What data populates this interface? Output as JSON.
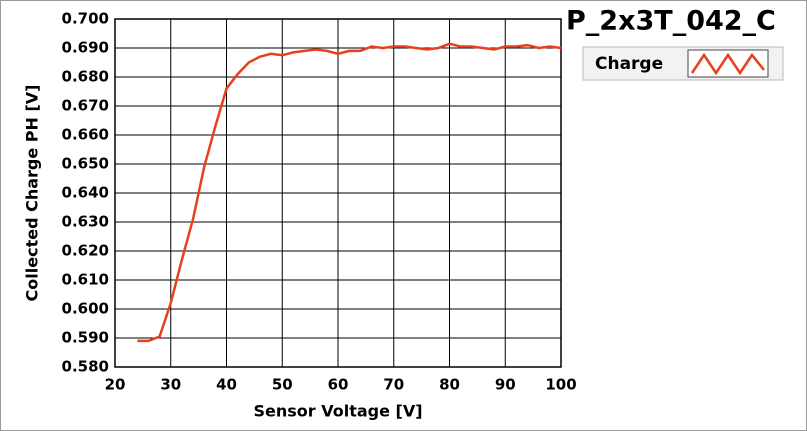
{
  "chart_data": {
    "type": "line",
    "title": "P_2x3T_042_C",
    "x_label": "Sensor Voltage [V]",
    "y_label": "Collected Charge PH [V]",
    "x": [
      24,
      26,
      28,
      30,
      32,
      34,
      36,
      38,
      40,
      42,
      44,
      46,
      48,
      50,
      52,
      54,
      56,
      58,
      60,
      62,
      64,
      66,
      68,
      70,
      72,
      74,
      76,
      78,
      80,
      82,
      84,
      86,
      88,
      90,
      92,
      94,
      96,
      98,
      100
    ],
    "series": [
      {
        "name": "Charge",
        "color": "#e8401c",
        "values": [
          0.589,
          0.589,
          0.5905,
          0.602,
          0.617,
          0.631,
          0.649,
          0.663,
          0.676,
          0.681,
          0.685,
          0.687,
          0.688,
          0.6875,
          0.6885,
          0.689,
          0.6895,
          0.689,
          0.688,
          0.689,
          0.689,
          0.6905,
          0.69,
          0.6905,
          0.6905,
          0.69,
          0.6895,
          0.69,
          0.6915,
          0.6905,
          0.6905,
          0.69,
          0.6895,
          0.6905,
          0.6905,
          0.691,
          0.69,
          0.6905,
          0.69
        ]
      }
    ],
    "xlim": [
      20,
      100
    ],
    "xticks": [
      20,
      30,
      40,
      50,
      60,
      70,
      80,
      90,
      100
    ],
    "ylim": [
      0.58,
      0.7
    ],
    "yticks": [
      {
        "value": 0.58,
        "label": "0.580"
      },
      {
        "value": 0.59,
        "label": "0.590"
      },
      {
        "value": 0.6,
        "label": "0.600"
      },
      {
        "value": 0.61,
        "label": "0.610"
      },
      {
        "value": 0.62,
        "label": "0.620"
      },
      {
        "value": 0.63,
        "label": "0.630"
      },
      {
        "value": 0.64,
        "label": "0.640"
      },
      {
        "value": 0.65,
        "label": "0.650"
      },
      {
        "value": 0.66,
        "label": "0.660"
      },
      {
        "value": 0.67,
        "label": "0.670"
      },
      {
        "value": 0.68,
        "label": "0.680"
      },
      {
        "value": 0.69,
        "label": "0.690"
      },
      {
        "value": 0.7,
        "label": "0.700"
      }
    ],
    "grid": true
  }
}
